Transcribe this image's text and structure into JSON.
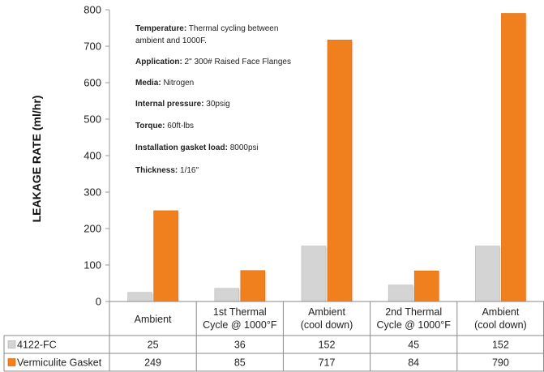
{
  "chart_data": {
    "type": "bar",
    "ylabel": "LEAKAGE RATE   (ml/hr)",
    "ylim": [
      0,
      800
    ],
    "yticks": [
      0,
      100,
      200,
      300,
      400,
      500,
      600,
      700,
      800
    ],
    "grid": false,
    "categories": [
      [
        "Ambient"
      ],
      [
        "1st Thermal",
        "Cycle @ 1000°F"
      ],
      [
        "Ambient",
        "(cool down)"
      ],
      [
        "2nd Thermal",
        "Cycle @ 1000°F"
      ],
      [
        "Ambient",
        "(cool down)"
      ]
    ],
    "series": [
      {
        "name": "4122-FC",
        "color": "#d4d4d4",
        "values": [
          25,
          36,
          152,
          45,
          152
        ]
      },
      {
        "name": "Vermiculite Gasket",
        "color": "#f07f1e",
        "values": [
          249,
          85,
          717,
          84,
          790
        ]
      }
    ],
    "legend_placement": "data-table-left"
  },
  "annotation": [
    {
      "label": "Temperature:",
      "text": " Thermal cycling between"
    },
    {
      "label": "",
      "text": "ambient and 1000F."
    },
    {
      "label": "Application:",
      "text": " 2\" 300# Raised Face Flanges"
    },
    {
      "label": "Media:",
      "text": " Nitrogen"
    },
    {
      "label": "Internal pressure:",
      "text": " 30psig"
    },
    {
      "label": "Torque:",
      "text": " 60ft-lbs"
    },
    {
      "label": "Installation gasket load:",
      "text": " 8000psi"
    },
    {
      "label": "Thickness:",
      "text": " 1/16\""
    }
  ]
}
